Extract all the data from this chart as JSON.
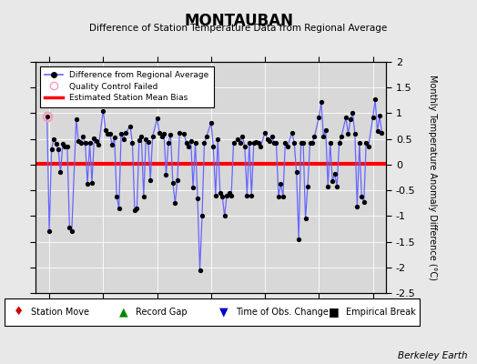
{
  "title": "MONTAUBAN",
  "subtitle": "Difference of Station Temperature Data from Regional Average",
  "ylabel_right": "Monthly Temperature Anomaly Difference (°C)",
  "xlim": [
    2001.5,
    2014.5
  ],
  "ylim": [
    -2.5,
    2.0
  ],
  "yticks_right": [
    -2.5,
    -2.0,
    -1.5,
    -1.0,
    -0.5,
    0.0,
    0.5,
    1.0,
    1.5,
    2.0
  ],
  "ytick_labels_right": [
    "-2.5",
    "-2",
    "-1.5",
    "-1",
    "-0.5",
    "0",
    "0.5",
    "1",
    "1.5",
    "2"
  ],
  "xticks": [
    2002,
    2004,
    2006,
    2008,
    2010,
    2012,
    2014
  ],
  "mean_bias": 0.02,
  "fig_bg": "#e8e8e8",
  "plot_bg": "#d8d8d8",
  "line_color": "#6666ff",
  "dot_color": "#000000",
  "bias_color": "#ff0000",
  "qc_fail_x": [
    2001.92
  ],
  "qc_fail_y": [
    0.93
  ],
  "data_x": [
    2001.917,
    2002.0,
    2002.083,
    2002.167,
    2002.25,
    2002.333,
    2002.417,
    2002.5,
    2002.583,
    2002.667,
    2002.75,
    2002.833,
    2003.0,
    2003.083,
    2003.167,
    2003.25,
    2003.333,
    2003.417,
    2003.5,
    2003.583,
    2003.667,
    2003.75,
    2003.833,
    2004.0,
    2004.083,
    2004.167,
    2004.25,
    2004.333,
    2004.417,
    2004.5,
    2004.583,
    2004.667,
    2004.75,
    2004.833,
    2005.0,
    2005.083,
    2005.167,
    2005.25,
    2005.333,
    2005.417,
    2005.5,
    2005.583,
    2005.667,
    2005.75,
    2005.833,
    2006.0,
    2006.083,
    2006.167,
    2006.25,
    2006.333,
    2006.417,
    2006.5,
    2006.583,
    2006.667,
    2006.75,
    2006.833,
    2007.0,
    2007.083,
    2007.167,
    2007.25,
    2007.333,
    2007.417,
    2007.5,
    2007.583,
    2007.667,
    2007.75,
    2007.833,
    2008.0,
    2008.083,
    2008.167,
    2008.25,
    2008.333,
    2008.417,
    2008.5,
    2008.583,
    2008.667,
    2008.75,
    2008.833,
    2009.0,
    2009.083,
    2009.167,
    2009.25,
    2009.333,
    2009.417,
    2009.5,
    2009.583,
    2009.667,
    2009.75,
    2009.833,
    2010.0,
    2010.083,
    2010.167,
    2010.25,
    2010.333,
    2010.417,
    2010.5,
    2010.583,
    2010.667,
    2010.75,
    2010.833,
    2011.0,
    2011.083,
    2011.167,
    2011.25,
    2011.333,
    2011.417,
    2011.5,
    2011.583,
    2011.667,
    2011.75,
    2011.833,
    2012.0,
    2012.083,
    2012.167,
    2012.25,
    2012.333,
    2012.417,
    2012.5,
    2012.583,
    2012.667,
    2012.75,
    2012.833,
    2013.0,
    2013.083,
    2013.167,
    2013.25,
    2013.333,
    2013.417,
    2013.5,
    2013.583,
    2013.667,
    2013.75,
    2013.833,
    2014.0,
    2014.083,
    2014.167,
    2014.25,
    2014.333
  ],
  "data_y": [
    0.93,
    -1.3,
    0.3,
    0.5,
    0.4,
    0.3,
    -0.15,
    0.4,
    0.35,
    0.35,
    -1.22,
    -1.3,
    0.88,
    0.45,
    0.42,
    0.55,
    0.42,
    -0.38,
    0.42,
    -0.35,
    0.52,
    0.45,
    0.38,
    1.05,
    0.68,
    0.6,
    0.6,
    0.38,
    0.53,
    -0.62,
    -0.85,
    0.6,
    0.5,
    0.62,
    0.75,
    0.42,
    -0.88,
    -0.85,
    0.48,
    0.55,
    -0.62,
    0.5,
    0.44,
    -0.3,
    0.55,
    0.9,
    0.62,
    0.55,
    0.6,
    -0.2,
    0.43,
    0.58,
    -0.35,
    -0.75,
    -0.3,
    0.62,
    0.6,
    0.42,
    0.35,
    0.45,
    -0.45,
    0.42,
    -0.65,
    -2.05,
    -1.0,
    0.42,
    0.55,
    0.82,
    0.35,
    -0.6,
    0.5,
    -0.55,
    -0.62,
    -1.0,
    -0.6,
    -0.55,
    -0.6,
    0.42,
    0.5,
    0.42,
    0.55,
    0.35,
    -0.6,
    0.42,
    -0.6,
    0.42,
    0.44,
    0.42,
    0.35,
    0.62,
    0.5,
    0.45,
    0.55,
    0.42,
    0.42,
    -0.62,
    -0.38,
    -0.62,
    0.42,
    0.35,
    0.62,
    0.42,
    -0.15,
    -1.45,
    0.42,
    0.42,
    -1.05,
    -0.42,
    0.42,
    0.42,
    0.55,
    0.92,
    1.22,
    0.55,
    0.68,
    -0.42,
    0.42,
    -0.32,
    -0.18,
    -0.42,
    0.42,
    0.55,
    0.92,
    0.6,
    0.88,
    1.0,
    0.6,
    -0.82,
    0.42,
    -0.62,
    -0.72,
    0.42,
    0.35,
    0.92,
    1.28,
    0.65,
    0.95,
    0.62
  ],
  "berkeley_earth_text": "Berkeley Earth",
  "legend_top": [
    {
      "label": "Difference from Regional Average",
      "color": "#6666ff",
      "dot": "#000000"
    },
    {
      "label": "Quality Control Failed",
      "color": "#ff88bb"
    },
    {
      "label": "Estimated Station Mean Bias",
      "color": "#ff0000"
    }
  ],
  "legend_bottom": [
    {
      "symbol": "♦",
      "color": "#cc0000",
      "label": "Station Move"
    },
    {
      "symbol": "▲",
      "color": "#008800",
      "label": "Record Gap"
    },
    {
      "symbol": "▼",
      "color": "#0000cc",
      "label": "Time of Obs. Change"
    },
    {
      "symbol": "■",
      "color": "#000000",
      "label": "Empirical Break"
    }
  ]
}
